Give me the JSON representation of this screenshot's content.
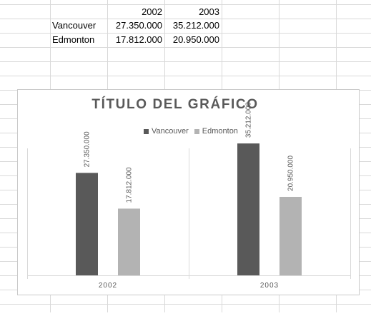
{
  "spreadsheet": {
    "header_row": [
      "",
      "2002",
      "2003"
    ],
    "rows": [
      [
        "Vancouver",
        "27.350.000",
        "35.212.000"
      ],
      [
        "Edmonton",
        "17.812.000",
        "20.950.000"
      ]
    ]
  },
  "chart_data": {
    "type": "bar",
    "title": "TÍTULO DEL GRÁFICO",
    "categories": [
      "2002",
      "2003"
    ],
    "series": [
      {
        "name": "Vancouver",
        "values": [
          27350000,
          35212000
        ],
        "labels": [
          "27.350.000",
          "35.212.000"
        ],
        "color": "#595959"
      },
      {
        "name": "Edmonton",
        "values": [
          17812000,
          20950000
        ],
        "labels": [
          "17.812.000",
          "20.950.000"
        ],
        "color": "#b3b3b3"
      }
    ],
    "ylim": [
      0,
      40000000
    ],
    "legend_position": "top",
    "grid": false
  },
  "colors": {
    "gridline": "#d9d9d9",
    "chart_text": "#595959",
    "axis": "#d9d9d9"
  }
}
